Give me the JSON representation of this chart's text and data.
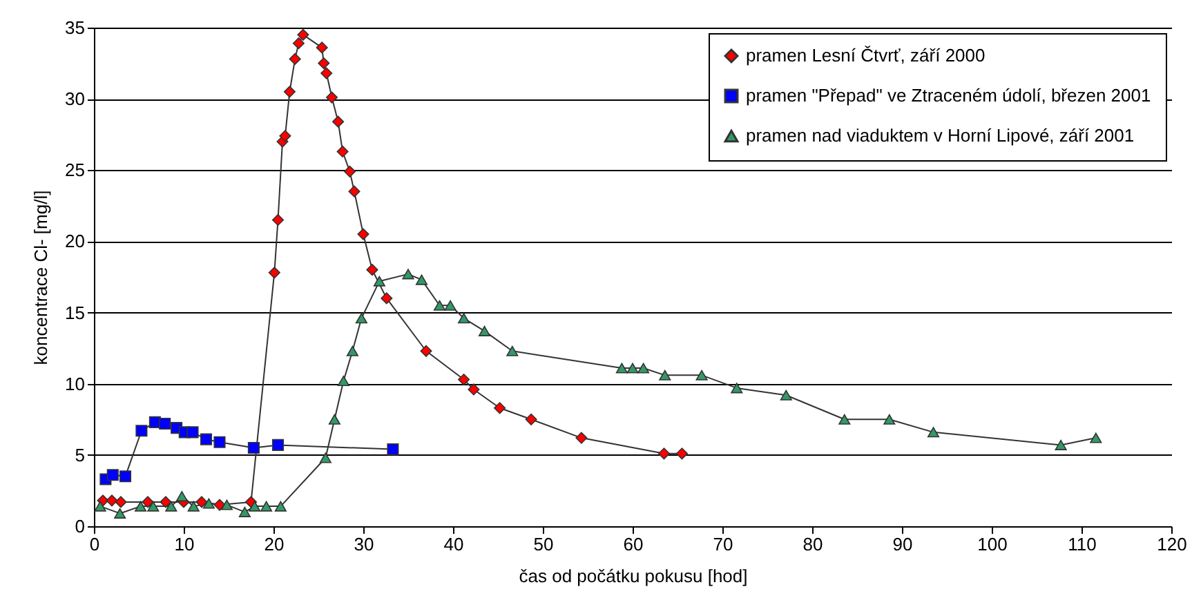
{
  "chart_data": {
    "type": "line",
    "xlabel": "čas od počátku pokusu [hod]",
    "ylabel": "koncentrace Cl- [mg/l]",
    "xlim": [
      0,
      120
    ],
    "xticks": [
      0,
      10,
      20,
      30,
      40,
      50,
      60,
      70,
      80,
      90,
      100,
      110,
      120
    ],
    "ylim": [
      0,
      35
    ],
    "yticks": [
      0,
      5,
      10,
      15,
      20,
      25,
      30,
      35
    ],
    "grid": "y",
    "legend": "top right",
    "series": [
      {
        "name": "pramen Lesní Čtvrť, září 2000",
        "color": "#ff0000",
        "marker": "diamond",
        "x": [
          1,
          2,
          3,
          6,
          8,
          10,
          12,
          14,
          17.5,
          20.1,
          20.5,
          21,
          21.3,
          21.8,
          22.4,
          22.8,
          23.3,
          25.4,
          25.6,
          25.9,
          26.5,
          27.2,
          27.7,
          28.5,
          29,
          30,
          31,
          32.6,
          37,
          41.2,
          42.3,
          45.2,
          48.7,
          54.3,
          63.5,
          65.5
        ],
        "values": [
          1.8,
          1.8,
          1.7,
          1.7,
          1.7,
          1.7,
          1.7,
          1.5,
          1.7,
          17.8,
          21.5,
          27,
          27.4,
          30.5,
          32.8,
          33.9,
          34.5,
          33.6,
          32.5,
          31.8,
          30.1,
          28.4,
          26.3,
          24.9,
          23.5,
          20.5,
          18,
          16,
          12.3,
          10.3,
          9.6,
          8.3,
          7.5,
          6.2,
          5.1,
          5.1
        ]
      },
      {
        "name": "pramen \"Přepad\" ve Ztraceném údolí, březen 2001",
        "color": "#0000ff",
        "marker": "square",
        "x": [
          1.3,
          2.1,
          3.5,
          5.3,
          6.8,
          7.9,
          9.2,
          10.1,
          11,
          12.5,
          14,
          17.8,
          20.5,
          33.3
        ],
        "values": [
          3.3,
          3.6,
          3.5,
          6.7,
          7.3,
          7.2,
          6.9,
          6.6,
          6.6,
          6.1,
          5.9,
          5.5,
          5.7,
          5.4
        ]
      },
      {
        "name": "pramen nad viaduktem v Horní Lipové, září 2001",
        "color": "#339966",
        "marker": "triangle",
        "x": [
          0.7,
          2.9,
          5.2,
          6.6,
          8.6,
          9.8,
          11.1,
          12.8,
          14.8,
          16.8,
          17.9,
          19.2,
          20.8,
          25.8,
          26.8,
          27.8,
          28.8,
          29.8,
          31.8,
          35,
          36.5,
          38.5,
          39.7,
          41.2,
          43.5,
          46.6,
          58.8,
          60,
          61.2,
          63.6,
          67.7,
          71.6,
          77.1,
          83.6,
          88.6,
          93.5,
          107.7,
          111.6
        ],
        "values": [
          1.4,
          0.9,
          1.4,
          1.4,
          1.4,
          2.1,
          1.4,
          1.6,
          1.5,
          1,
          1.4,
          1.4,
          1.4,
          4.8,
          7.5,
          10.2,
          12.3,
          14.6,
          17.2,
          17.7,
          17.3,
          15.5,
          15.5,
          14.6,
          13.7,
          12.3,
          11.1,
          11.1,
          11.1,
          10.6,
          10.6,
          9.7,
          9.2,
          7.5,
          7.5,
          6.6,
          5.7,
          6.2
        ]
      }
    ]
  }
}
